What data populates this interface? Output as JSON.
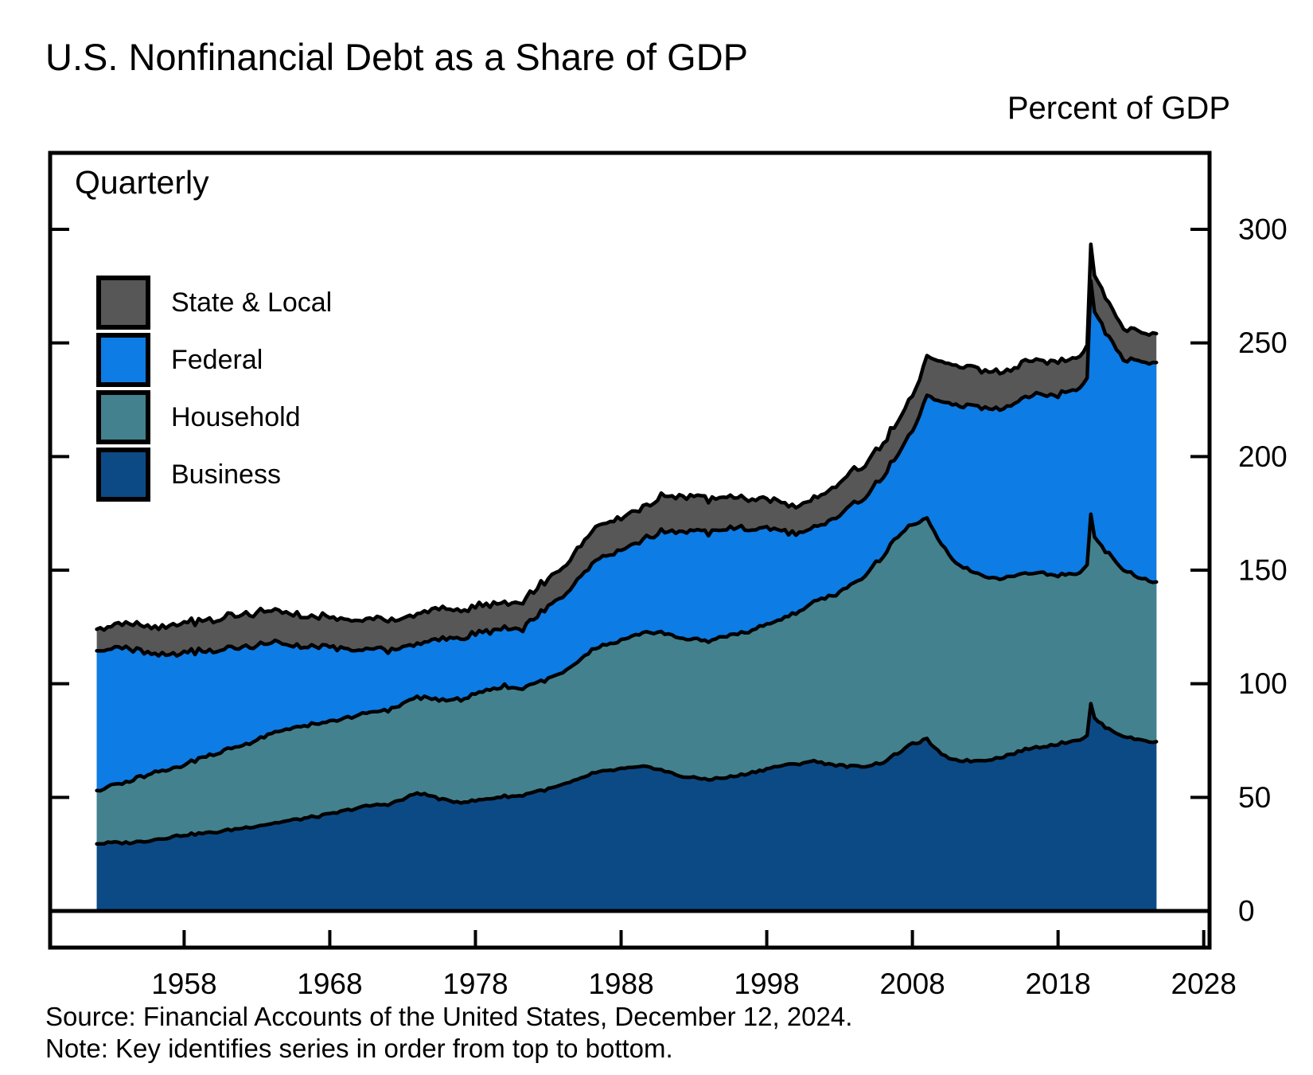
{
  "title": "U.S. Nonfinancial Debt as a Share of GDP",
  "unit_label": "Percent of GDP",
  "frequency_label": "Quarterly",
  "source": "Source: Financial Accounts of the United States, December 12, 2024.",
  "note": "Note: Key identifies series in order from top to bottom.",
  "colors": {
    "background": "#ffffff",
    "axis": "#000000",
    "line": "#000000"
  },
  "chart_data": {
    "type": "area",
    "stacked": true,
    "title": "U.S. Nonfinancial Debt as a Share of GDP",
    "ylabel": "Percent of GDP",
    "inner_label": "Quarterly",
    "legend_position": "upper-left",
    "grid": false,
    "x_ticks": [
      1958,
      1968,
      1978,
      1988,
      1998,
      2008,
      2018,
      2028
    ],
    "y_ticks": [
      0,
      50,
      100,
      150,
      200,
      250,
      300
    ],
    "xlim": [
      1948.8,
      2028.4
    ],
    "ylim": [
      0,
      334
    ],
    "x": [
      1952,
      1953,
      1954,
      1955,
      1956,
      1957,
      1958,
      1959,
      1960,
      1961,
      1962,
      1963,
      1964,
      1965,
      1966,
      1967,
      1968,
      1969,
      1970,
      1971,
      1972,
      1973,
      1974,
      1975,
      1976,
      1977,
      1978,
      1979,
      1980,
      1981,
      1982,
      1983,
      1984,
      1985,
      1986,
      1987,
      1988,
      1989,
      1990,
      1991,
      1992,
      1993,
      1994,
      1995,
      1996,
      1997,
      1998,
      1999,
      2000,
      2001,
      2002,
      2003,
      2004,
      2005,
      2006,
      2007,
      2008,
      2009,
      2010,
      2011,
      2012,
      2013,
      2014,
      2015,
      2016,
      2017,
      2018,
      2019,
      2019.5,
      2020,
      2020.25,
      2020.5,
      2020.75,
      2021,
      2021.5,
      2022,
      2022.5,
      2023,
      2023.5,
      2024,
      2024.5,
      2024.75
    ],
    "series": [
      {
        "name": "State & Local",
        "color": "#575757",
        "jitter": 0.7,
        "values": [
          9.5,
          10,
          11,
          11,
          11.5,
          12.5,
          13.5,
          13.5,
          13.5,
          14,
          14,
          14.5,
          14.5,
          14,
          13.5,
          13.5,
          13.5,
          13,
          13.5,
          13.5,
          13.5,
          13,
          13,
          13.5,
          13,
          12.5,
          12,
          11.5,
          11.5,
          11.5,
          12,
          12.5,
          12.5,
          13.5,
          14.5,
          14.5,
          14,
          14,
          14.5,
          15.5,
          15.5,
          15.5,
          14.5,
          14,
          13.5,
          13,
          13,
          12.5,
          12,
          12.5,
          13.5,
          14,
          14.5,
          14.5,
          14.5,
          14.5,
          15.5,
          17,
          17.5,
          17.5,
          17,
          16.5,
          16,
          15.5,
          15.5,
          15,
          14.5,
          14,
          14,
          14.5,
          16.5,
          16,
          15.8,
          15.5,
          15,
          14.5,
          14,
          13.5,
          13,
          13,
          12.8,
          12.7
        ]
      },
      {
        "name": "Federal",
        "color": "#0d7ce4",
        "jitter": 0.9,
        "values": [
          61.5,
          60,
          59.5,
          55.5,
          52,
          50,
          49.5,
          47.5,
          45.5,
          44.5,
          43,
          41.5,
          40,
          37.5,
          35,
          34,
          33,
          30.5,
          28.5,
          28,
          26.5,
          24.5,
          23.5,
          25.5,
          27,
          27,
          26.5,
          25.5,
          25.5,
          25.5,
          28.5,
          31.5,
          33.5,
          36,
          38.5,
          39.5,
          40,
          40.5,
          42,
          45,
          47,
          48,
          47.5,
          47.5,
          46.5,
          44.5,
          42.5,
          39,
          34.5,
          32.5,
          32.5,
          34,
          35,
          35,
          35,
          35.5,
          40.5,
          54,
          63,
          69.5,
          72.5,
          74,
          75,
          76,
          78.5,
          78.5,
          79.5,
          81,
          81.5,
          83,
          103,
          99.5,
          98.5,
          97.5,
          96,
          93.5,
          92.5,
          94,
          95,
          95.5,
          96.5,
          96.6
        ]
      },
      {
        "name": "Household",
        "color": "#43818e",
        "jitter": 0.6,
        "values": [
          23.5,
          25,
          26.5,
          28.5,
          29.5,
          30,
          31,
          33,
          34.5,
          35.5,
          36.5,
          38,
          39.5,
          40.5,
          40.5,
          40.5,
          40.5,
          40.5,
          40.5,
          41,
          41.5,
          42,
          42,
          43,
          44,
          45.5,
          46.5,
          48,
          48.5,
          47.5,
          47.5,
          48.5,
          49.5,
          52,
          54.5,
          55.5,
          56.5,
          58,
          59.5,
          60.5,
          60.5,
          61,
          61,
          62,
          62.5,
          62.5,
          63.5,
          64.5,
          66.5,
          69.5,
          72.5,
          76.5,
          80.5,
          85.5,
          91,
          95.5,
          96.5,
          97,
          92,
          87,
          83.5,
          81,
          79,
          78,
          77.5,
          76.5,
          74.5,
          73.5,
          73.5,
          74.5,
          83,
          79.5,
          79,
          78,
          77,
          75,
          73.5,
          72.5,
          71.5,
          71,
          70.5,
          70.3
        ]
      },
      {
        "name": "Business",
        "color": "#0c4a85",
        "jitter": 0.55,
        "values": [
          29.5,
          30,
          30,
          30.5,
          31.5,
          32.5,
          33.5,
          34,
          34.5,
          35.5,
          36.5,
          37.5,
          38.5,
          39.5,
          40.5,
          41.5,
          42.5,
          44,
          45.5,
          46.5,
          47,
          49,
          52,
          50.5,
          48.5,
          48,
          48.5,
          49.5,
          50.5,
          50.5,
          52.5,
          53.5,
          55.5,
          57.5,
          60.5,
          61.5,
          62.5,
          63,
          63.5,
          61.5,
          59.5,
          58.5,
          58,
          58.5,
          59.5,
          61,
          62.5,
          64,
          64.5,
          66,
          65,
          64,
          63.5,
          64,
          65.5,
          69.5,
          73.5,
          75.5,
          68.5,
          66.5,
          66,
          66.5,
          67.5,
          69.5,
          71.5,
          72.5,
          73.5,
          75,
          75.5,
          77,
          91,
          85,
          83.5,
          82,
          80,
          78.5,
          77,
          76,
          75.5,
          75,
          74.5,
          74.5
        ]
      }
    ]
  }
}
